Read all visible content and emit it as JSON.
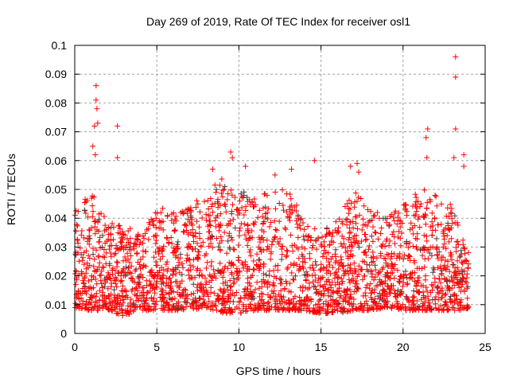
{
  "chart_data": {
    "type": "scatter",
    "title": "Day 269 of 2019, Rate Of TEC Index for receiver osl1",
    "xlabel": "GPS time / hours",
    "ylabel": "ROTI / TECUs",
    "xlim": [
      0,
      25
    ],
    "ylim": [
      0,
      0.1
    ],
    "xticks": [
      "0",
      "5",
      "10",
      "15",
      "20",
      "25"
    ],
    "yticks": [
      "0",
      "0.01",
      "0.02",
      "0.03",
      "0.04",
      "0.05",
      "0.06",
      "0.07",
      "0.08",
      "0.09",
      "0.1"
    ],
    "grid": true,
    "marker": "+",
    "colors": {
      "primary": "#ff0000",
      "secondary": "#404040",
      "grid": "#a0a0a0"
    },
    "envelope": [
      [
        0,
        0.009,
        0.045
      ],
      [
        1,
        0.008,
        0.05
      ],
      [
        2,
        0.008,
        0.04
      ],
      [
        3,
        0.006,
        0.038
      ],
      [
        4,
        0.008,
        0.035
      ],
      [
        5,
        0.008,
        0.045
      ],
      [
        6,
        0.008,
        0.042
      ],
      [
        7,
        0.008,
        0.045
      ],
      [
        8,
        0.009,
        0.05
      ],
      [
        9,
        0.007,
        0.055
      ],
      [
        10,
        0.007,
        0.05
      ],
      [
        11,
        0.008,
        0.048
      ],
      [
        12,
        0.008,
        0.05
      ],
      [
        13,
        0.008,
        0.05
      ],
      [
        14,
        0.008,
        0.04
      ],
      [
        15,
        0.007,
        0.035
      ],
      [
        16,
        0.007,
        0.04
      ],
      [
        17,
        0.008,
        0.05
      ],
      [
        18,
        0.008,
        0.045
      ],
      [
        19,
        0.009,
        0.04
      ],
      [
        20,
        0.008,
        0.045
      ],
      [
        21,
        0.008,
        0.05
      ],
      [
        22,
        0.008,
        0.05
      ],
      [
        23,
        0.008,
        0.045
      ],
      [
        24,
        0.008,
        0.03
      ]
    ],
    "peaks": [
      [
        1.3,
        0.086
      ],
      [
        1.3,
        0.081
      ],
      [
        1.35,
        0.078
      ],
      [
        1.4,
        0.073
      ],
      [
        1.2,
        0.072
      ],
      [
        1.1,
        0.065
      ],
      [
        1.25,
        0.062
      ],
      [
        2.6,
        0.072
      ],
      [
        2.6,
        0.061
      ],
      [
        8.4,
        0.057
      ],
      [
        9.5,
        0.063
      ],
      [
        9.6,
        0.061
      ],
      [
        10.4,
        0.058
      ],
      [
        12.2,
        0.055
      ],
      [
        13.2,
        0.057
      ],
      [
        14.6,
        0.06
      ],
      [
        16.8,
        0.058
      ],
      [
        17.2,
        0.059
      ],
      [
        17.3,
        0.056
      ],
      [
        21.5,
        0.071
      ],
      [
        21.4,
        0.068
      ],
      [
        21.45,
        0.061
      ],
      [
        23.2,
        0.096
      ],
      [
        23.2,
        0.089
      ],
      [
        23.2,
        0.071
      ],
      [
        23.1,
        0.061
      ],
      [
        23.7,
        0.062
      ],
      [
        23.7,
        0.058
      ]
    ]
  }
}
